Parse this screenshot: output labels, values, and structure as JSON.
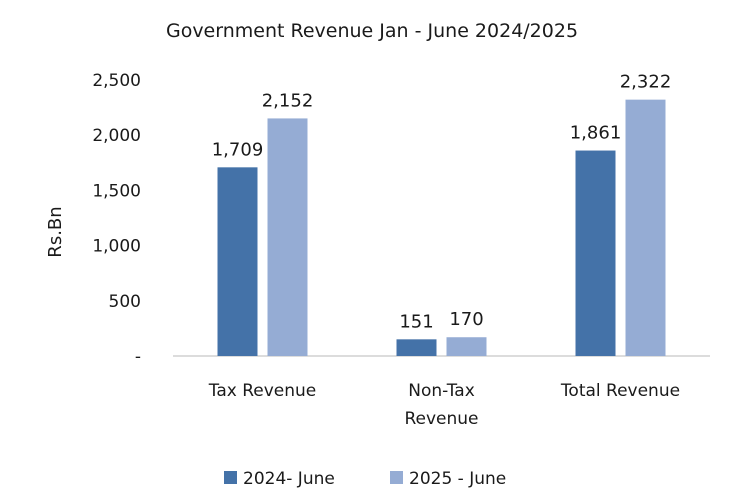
{
  "chart_data": {
    "type": "bar",
    "title": "Government Revenue Jan - June 2024/2025",
    "xlabel": "",
    "ylabel": "Rs.Bn",
    "categories": [
      [
        "Tax Revenue"
      ],
      [
        "Non-Tax",
        "Revenue"
      ],
      [
        "Total Revenue"
      ]
    ],
    "series": [
      {
        "name": "2024- June",
        "color": "#4472a8",
        "values": [
          1709,
          151,
          1861
        ],
        "labels": [
          "1,709",
          "151",
          "1,861"
        ]
      },
      {
        "name": "2025 - June",
        "color": "#95acd4",
        "values": [
          2152,
          170,
          2322
        ],
        "labels": [
          "2,152",
          "170",
          "2,322"
        ]
      }
    ],
    "ylim": [
      0,
      2500
    ],
    "yticks": [
      0,
      500,
      1000,
      1500,
      2000,
      2500
    ],
    "ytick_labels": [
      "-",
      "500",
      "1,000",
      "1,500",
      "2,000",
      "2,500"
    ],
    "grid": false,
    "legend_position": "bottom"
  }
}
